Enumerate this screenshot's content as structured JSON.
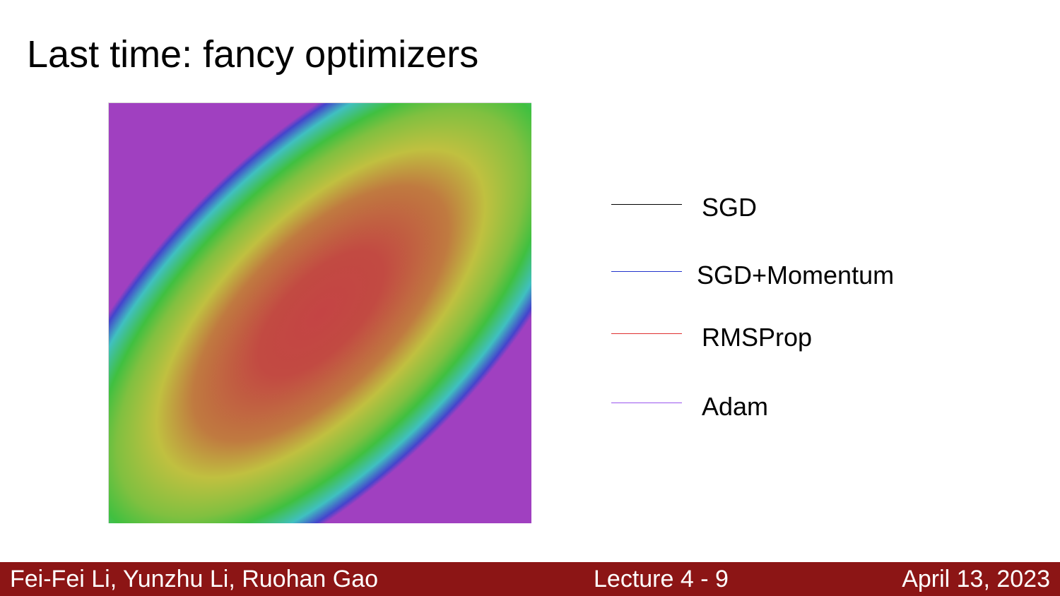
{
  "slide": {
    "title": "Last time: fancy optimizers"
  },
  "legend": {
    "items": [
      {
        "label": "SGD",
        "color": "#000000"
      },
      {
        "label": "SGD+Momentum",
        "color": "#2233cc"
      },
      {
        "label": "RMSProp",
        "color": "#e03030"
      },
      {
        "label": "Adam",
        "color": "#9955ee"
      }
    ]
  },
  "footer": {
    "authors": "Fei-Fei Li, Yunzhu Li, Ruohan Gao",
    "lecture": "Lecture 4 - 9",
    "date": "April 13, 2023",
    "background": "#8c1515"
  },
  "colors": {
    "contour_center": "#c44444",
    "contour_mid": "#c0c040",
    "contour_green": "#40c040",
    "contour_cyan": "#40c0c0",
    "contour_blue": "#4444cc",
    "contour_corner": "#a040c0"
  }
}
